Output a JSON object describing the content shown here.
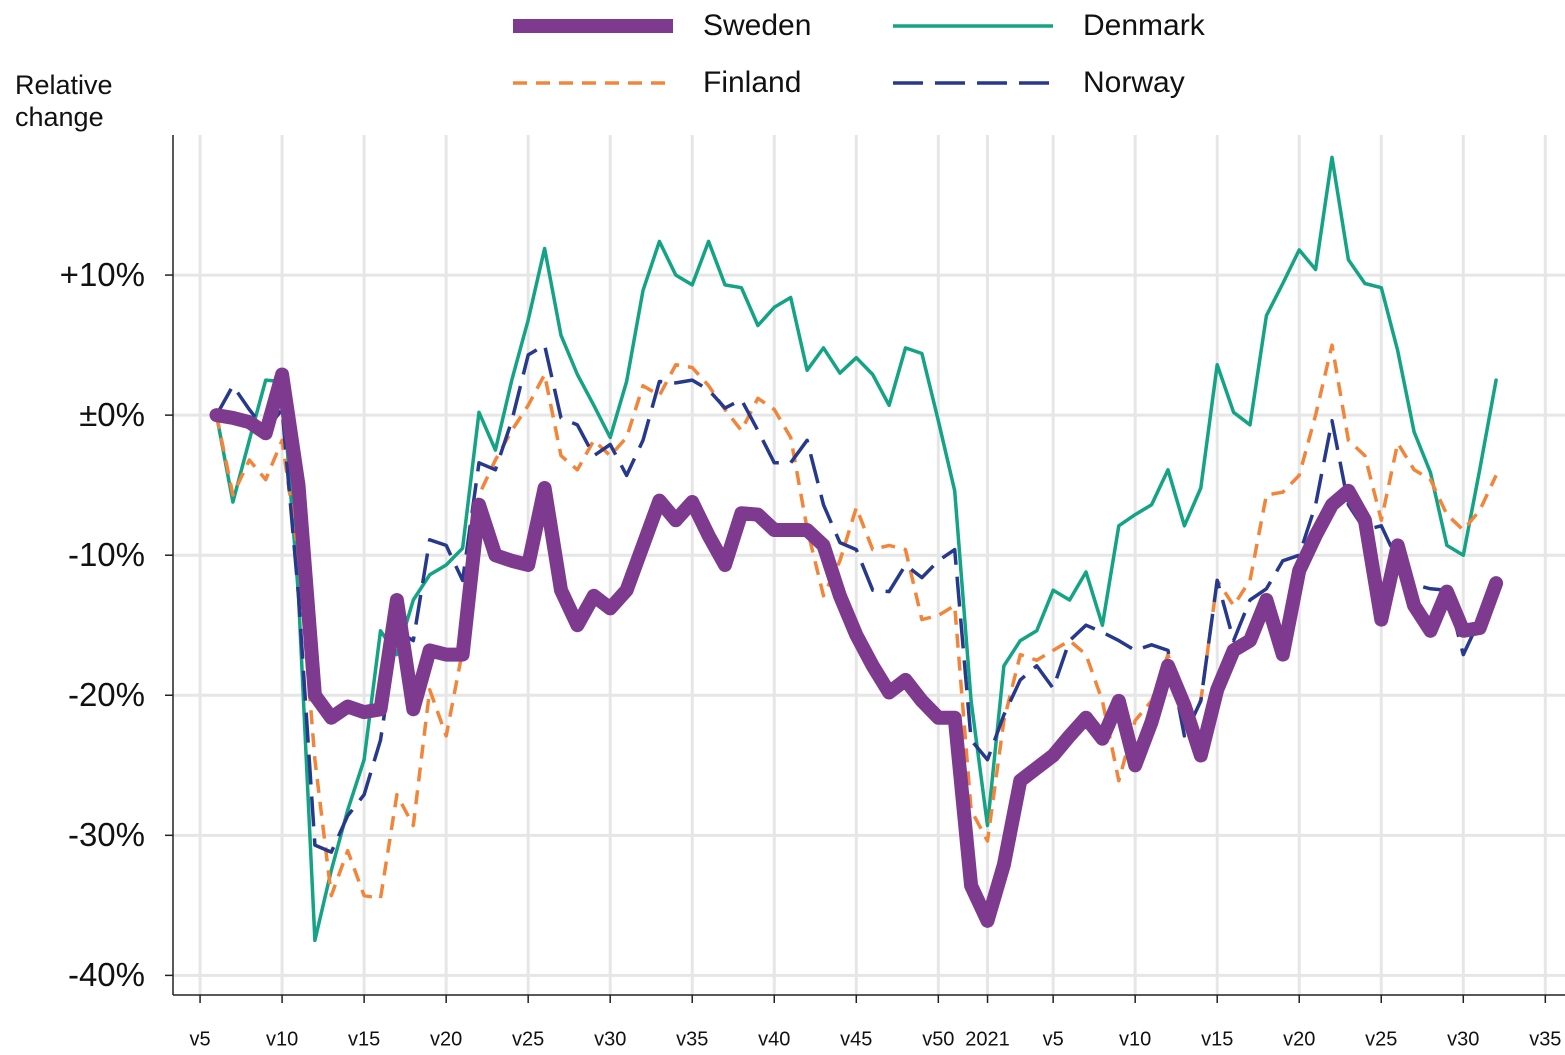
{
  "chart_data": {
    "type": "line",
    "ylabel": [
      "Relative",
      "change"
    ],
    "x": [
      1,
      2,
      3,
      4,
      5,
      6,
      7,
      8,
      9,
      10,
      11,
      12,
      13,
      14,
      15,
      16,
      17,
      18,
      19,
      20,
      21,
      22,
      23,
      24,
      25,
      26,
      27,
      28,
      29,
      30,
      31,
      32,
      33,
      34,
      35,
      36,
      37,
      38,
      39,
      40,
      41,
      42,
      43,
      44,
      45,
      46,
      47,
      48,
      49,
      50,
      51,
      52,
      53,
      54,
      55,
      56,
      57,
      58,
      59,
      60,
      61,
      62,
      63,
      64,
      65,
      66,
      67,
      68,
      69,
      70,
      71,
      72,
      73,
      74,
      75,
      76,
      77,
      78,
      79
    ],
    "series": [
      {
        "name": "Sweden",
        "color": "#7d3a8e",
        "linestyle": "thick",
        "values": [
          0,
          -0.2,
          -0.5,
          -1.3,
          2.9,
          -5,
          -20,
          -21.6,
          -20.8,
          -21.2,
          -21,
          -13.2,
          -21,
          -16.8,
          -17.1,
          -17.1,
          -6.4,
          -10,
          -10.4,
          -10.7,
          -5.2,
          -12.5,
          -15,
          -12.9,
          -13.8,
          -12.5,
          -9.3,
          -6.1,
          -7.5,
          -6.2,
          -8.6,
          -10.7,
          -7,
          -7.1,
          -8.2,
          -8.2,
          -8.2,
          -9.3,
          -12.9,
          -15.7,
          -17.9,
          -19.8,
          -18.9,
          -20.4,
          -21.6,
          -21.6,
          -33.6,
          -36.1,
          -32.1,
          -26.1,
          -25.2,
          -24.3,
          -22.9,
          -21.6,
          -23.1,
          -20.4,
          -25,
          -21.9,
          -17.9,
          -20.7,
          -24.3,
          -19.6,
          -16.8,
          -16.1,
          -13.2,
          -17.1,
          -11.1,
          -8.6,
          -6.4,
          -5.4,
          -7.5,
          -14.6,
          -9.3,
          -13.6,
          -15.4,
          -12.6,
          -15.4,
          -15.2,
          -12
        ]
      },
      {
        "name": "Denmark",
        "color": "#14a384",
        "linestyle": "solid",
        "values": [
          0,
          -6.2,
          -1.8,
          2.5,
          2.4,
          -12.9,
          -37.5,
          -32.5,
          -28.2,
          -24.6,
          -15.4,
          -17.1,
          -13.2,
          -11.4,
          -10.7,
          -9.5,
          0.2,
          -2.5,
          2.5,
          6.8,
          11.9,
          5.7,
          2.9,
          0.7,
          -1.6,
          2.4,
          8.9,
          12.4,
          10,
          9.3,
          12.4,
          9.3,
          9.1,
          6.4,
          7.7,
          8.4,
          3.2,
          4.8,
          3,
          4.1,
          2.9,
          0.7,
          4.8,
          4.4,
          -0.4,
          -5.4,
          -20.4,
          -29.3,
          -17.9,
          -16.1,
          -15.4,
          -12.5,
          -13.2,
          -11.2,
          -15,
          -7.9,
          -7.1,
          -6.4,
          -3.9,
          -7.9,
          -5.2,
          3.6,
          0.2,
          -0.7,
          7.1,
          9.4,
          11.8,
          10.4,
          18.4,
          11.1,
          9.4,
          9.1,
          4.6,
          -1.2,
          -4.1,
          -9.3,
          -10,
          -3.9,
          2.5
        ]
      },
      {
        "name": "Finland",
        "color": "#f2853a",
        "linestyle": "dashed",
        "values": [
          0,
          -5.7,
          -3.2,
          -4.6,
          -1.8,
          -10,
          -24.6,
          -34.3,
          -31.1,
          -34.3,
          -34.5,
          -27.1,
          -29.3,
          -19.6,
          -22.9,
          -16.8,
          -5.7,
          -3.2,
          -1.1,
          0.7,
          2.9,
          -2.9,
          -3.9,
          -1.8,
          -2.9,
          -1.6,
          2.1,
          1.4,
          3.6,
          3.4,
          2.1,
          0.4,
          -1.1,
          1.2,
          0.4,
          -1.6,
          -8.1,
          -12.9,
          -10.4,
          -6.6,
          -9.6,
          -9.3,
          -9.6,
          -14.6,
          -14.3,
          -13.6,
          -28.2,
          -30.4,
          -21.8,
          -17.1,
          -17.5,
          -16.8,
          -16.1,
          -17.1,
          -20.4,
          -26.1,
          -21.8,
          -20.4,
          -17.1,
          -21.4,
          -20.4,
          -11.8,
          -13.6,
          -11.8,
          -5.7,
          -5.5,
          -4.3,
          0,
          5,
          -1.8,
          -2.9,
          -7.5,
          -2,
          -3.9,
          -4.6,
          -7.1,
          -8.2,
          -6.8,
          -4.3
        ]
      },
      {
        "name": "Norway",
        "color": "#26398c",
        "linestyle": "long-dashed",
        "values": [
          0,
          2.1,
          0.4,
          -1.1,
          0.4,
          -12.9,
          -30.7,
          -31.2,
          -28.6,
          -27.1,
          -23.2,
          -15.4,
          -16.1,
          -8.9,
          -9.3,
          -11.8,
          -3.4,
          -3.9,
          -0.4,
          4.3,
          5,
          -0.2,
          -0.7,
          -2.9,
          -2.1,
          -4.3,
          -1.8,
          2.4,
          2.3,
          2.5,
          1.8,
          0.5,
          1.1,
          -1.1,
          -3.4,
          -3.4,
          -1.8,
          -6.4,
          -9.1,
          -9.6,
          -12.5,
          -12.6,
          -10.7,
          -11.6,
          -10.4,
          -9.6,
          -23.2,
          -24.6,
          -21.4,
          -18.9,
          -17.9,
          -19.5,
          -16.1,
          -15,
          -15.5,
          -16.1,
          -16.8,
          -16.4,
          -16.8,
          -22.9,
          -20.4,
          -11.8,
          -16.1,
          -13.2,
          -12.4,
          -10.4,
          -10,
          -6.4,
          -0.4,
          -6.4,
          -8.2,
          -7.9,
          -10.4,
          -12.1,
          -12.4,
          -12.5,
          -17.1,
          -14.6,
          -12.9
        ]
      }
    ],
    "xlim": [
      -1.65,
      83.2
    ],
    "xticks": [
      {
        "value": 0,
        "label": "v5"
      },
      {
        "value": 5,
        "label": "v10"
      },
      {
        "value": 10,
        "label": "v15"
      },
      {
        "value": 15,
        "label": "v20"
      },
      {
        "value": 20,
        "label": "v25"
      },
      {
        "value": 25,
        "label": "v30"
      },
      {
        "value": 30,
        "label": "v35"
      },
      {
        "value": 35,
        "label": "v40"
      },
      {
        "value": 40,
        "label": "v45"
      },
      {
        "value": 45,
        "label": "v50"
      },
      {
        "value": 48,
        "label": "2021"
      },
      {
        "value": 52,
        "label": "v5"
      },
      {
        "value": 57,
        "label": "v10"
      },
      {
        "value": 62,
        "label": "v15"
      },
      {
        "value": 67,
        "label": "v20"
      },
      {
        "value": 72,
        "label": "v25"
      },
      {
        "value": 77,
        "label": "v30"
      },
      {
        "value": 82,
        "label": "v35"
      }
    ],
    "ylim": [
      -41.4,
      20
    ],
    "yticks": [
      {
        "value": -40,
        "label": "-40%"
      },
      {
        "value": -30,
        "label": "-30%"
      },
      {
        "value": -20,
        "label": "-20%"
      },
      {
        "value": -10,
        "label": "-10%"
      },
      {
        "value": 0,
        "label": "±0%"
      },
      {
        "value": 10,
        "label": "+10%"
      }
    ],
    "grid": true,
    "legend": "top"
  }
}
